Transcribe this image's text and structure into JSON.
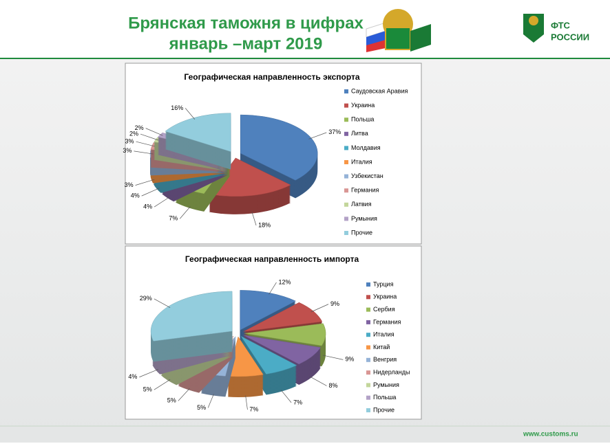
{
  "header": {
    "title_line1": "Брянская таможня в цифрах",
    "title_line2": "январь –март 2019",
    "brand_line1": "ФТС",
    "brand_line2": "РОССИИ"
  },
  "footer": {
    "url": "www.customs.ru"
  },
  "chart_data": [
    {
      "type": "pie3d",
      "title": "Географическая направленность экспорта",
      "categories": [
        "Саудовская Аравия",
        "Украина",
        "Польша",
        "Литва",
        "Молдавия",
        "Италия",
        "Узбекистан",
        "Германия",
        "Латвия",
        "Румыния",
        "Прочие"
      ],
      "values": [
        37,
        18,
        7,
        4,
        4,
        3,
        3,
        3,
        2,
        2,
        16
      ],
      "value_labels": [
        "37%",
        "18%",
        "7%",
        "4%",
        "4%",
        "3%",
        "3%",
        "3%",
        "2%",
        "2%",
        "16%"
      ],
      "colors": [
        "#4f81bd",
        "#c0504d",
        "#9bbb59",
        "#8064a2",
        "#4bacc6",
        "#f79646",
        "#95b3d7",
        "#d99694",
        "#c3d69b",
        "#b3a2c7",
        "#93cddd"
      ]
    },
    {
      "type": "pie3d",
      "title": "Географическая направленность импорта",
      "categories": [
        "Турция",
        "Украина",
        "Сербия",
        "Германия",
        "Италия",
        "Китай",
        "Венгрия",
        "Нидерланды",
        "Румыния",
        "Польша",
        "Прочие"
      ],
      "values": [
        12,
        9,
        9,
        8,
        7,
        7,
        5,
        5,
        5,
        4,
        29
      ],
      "value_labels": [
        "12%",
        "9%",
        "9%",
        "8%",
        "7%",
        "7%",
        "5%",
        "5%",
        "5%",
        "4%",
        "29%"
      ],
      "colors": [
        "#4f81bd",
        "#c0504d",
        "#9bbb59",
        "#8064a2",
        "#4bacc6",
        "#f79646",
        "#95b3d7",
        "#d99694",
        "#c3d69b",
        "#b3a2c7",
        "#93cddd"
      ]
    }
  ]
}
